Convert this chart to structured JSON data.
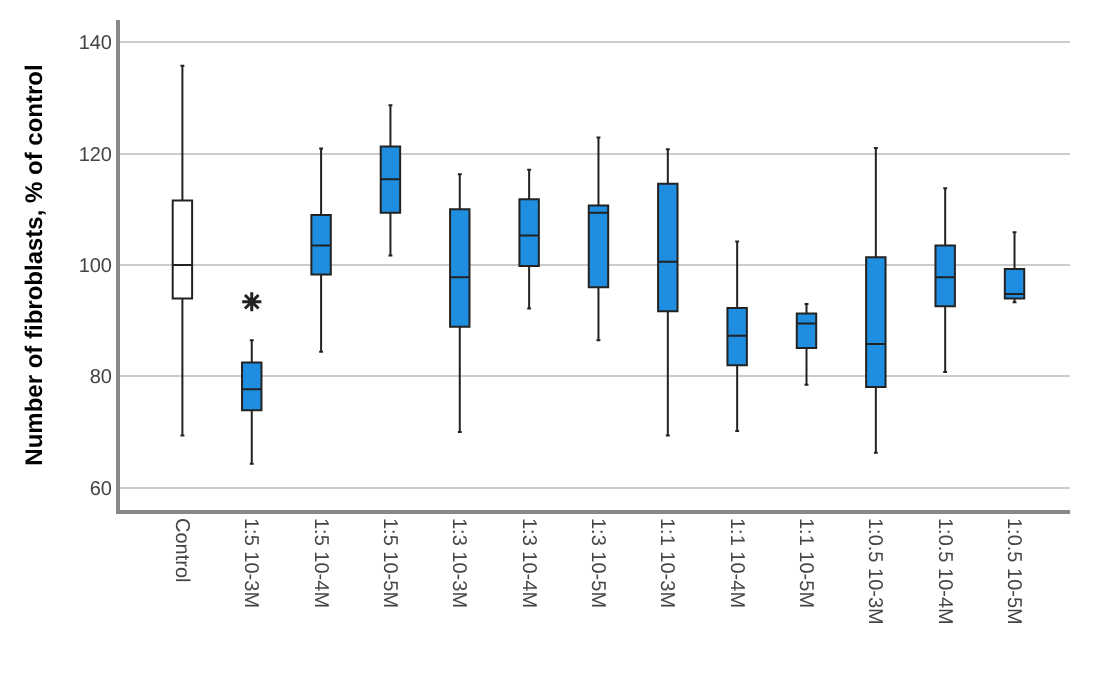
{
  "chart_data": {
    "type": "box",
    "ylabel": "Number of fibroblasts, % of control",
    "categories": [
      "Control",
      "1:5 10-3M",
      "1:5 10-4M",
      "1:5 10-5M",
      "1:3 10-3M",
      "1:3 10-4M",
      "1:3 10-5M",
      "1:1 10-3M",
      "1:1 10-4M",
      "1:1 10-5M",
      "1:0.5 10-3M",
      "1:0.5 10-4M",
      "1:0.5 10-5M"
    ],
    "colors": [
      "#ffffff",
      "#1f8ee0",
      "#1f8ee0",
      "#1f8ee0",
      "#1f8ee0",
      "#1f8ee0",
      "#1f8ee0",
      "#1f8ee0",
      "#1f8ee0",
      "#1f8ee0",
      "#1f8ee0",
      "#1f8ee0",
      "#1f8ee0"
    ],
    "boxes": [
      {
        "low": 69.4,
        "q1": 94.0,
        "median": 100,
        "q3": 111.6,
        "high": 135.8
      },
      {
        "low": 64.3,
        "q1": 73.9,
        "median": 77.7,
        "q3": 82.5,
        "high": 86.5,
        "outliers": [
          93.4
        ]
      },
      {
        "low": 84.4,
        "q1": 98.3,
        "median": 103.5,
        "q3": 109,
        "high": 120.9
      },
      {
        "low": 101.7,
        "q1": 109.4,
        "median": 115.4,
        "q3": 121.3,
        "high": 128.7
      },
      {
        "low": 70.0,
        "q1": 88.9,
        "median": 97.8,
        "q3": 110,
        "high": 116.3
      },
      {
        "low": 92.2,
        "q1": 99.8,
        "median": 105.3,
        "q3": 111.8,
        "high": 117.1
      },
      {
        "low": 86.5,
        "q1": 96.0,
        "median": 109.4,
        "q3": 110.7,
        "high": 122.9
      },
      {
        "low": 69.4,
        "q1": 91.7,
        "median": 100.6,
        "q3": 114.6,
        "high": 120.8
      },
      {
        "low": 70.2,
        "q1": 82.0,
        "median": 87.3,
        "q3": 92.3,
        "high": 104.2
      },
      {
        "low": 78.5,
        "q1": 85.1,
        "median": 89.5,
        "q3": 91.3,
        "high": 93.0
      },
      {
        "low": 66.3,
        "q1": 78.1,
        "median": 85.8,
        "q3": 101.4,
        "high": 121.0
      },
      {
        "low": 80.8,
        "q1": 92.6,
        "median": 97.8,
        "q3": 103.5,
        "high": 113.8
      },
      {
        "low": 93.3,
        "q1": 94.0,
        "median": 94.8,
        "q3": 99.3,
        "high": 105.9
      }
    ],
    "marker": "star",
    "ylim": [
      56,
      144
    ],
    "yticks": [
      60,
      80,
      100,
      120,
      140
    ],
    "grid": "y"
  }
}
